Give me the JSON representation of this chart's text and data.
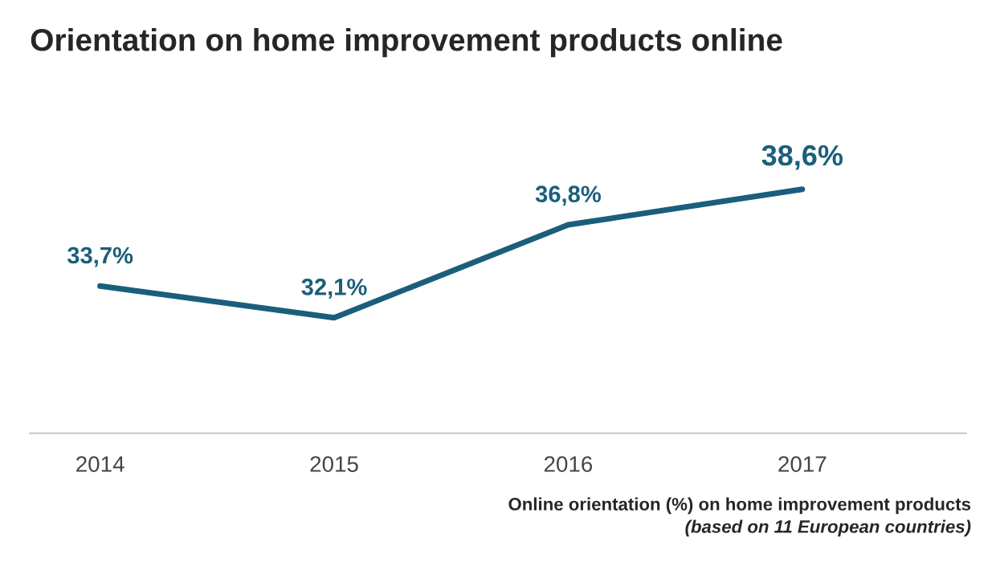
{
  "chart_data": {
    "type": "line",
    "title": "Orientation on home improvement products online",
    "categories": [
      "2014",
      "2015",
      "2016",
      "2017"
    ],
    "series": [
      {
        "color": "#1b5e7b",
        "values": [
          33.7,
          32.1,
          36.8,
          38.6
        ],
        "value_labels": [
          "33,7%",
          "32,1%",
          "36,8%",
          "38,6%"
        ]
      }
    ],
    "tick_labels": "x",
    "grid": false,
    "legend": false,
    "marker": "none",
    "line_style": "solid",
    "annotations": [
      "Online orientation (%) on home improvement products",
      "(based on 11 European countries)"
    ]
  }
}
